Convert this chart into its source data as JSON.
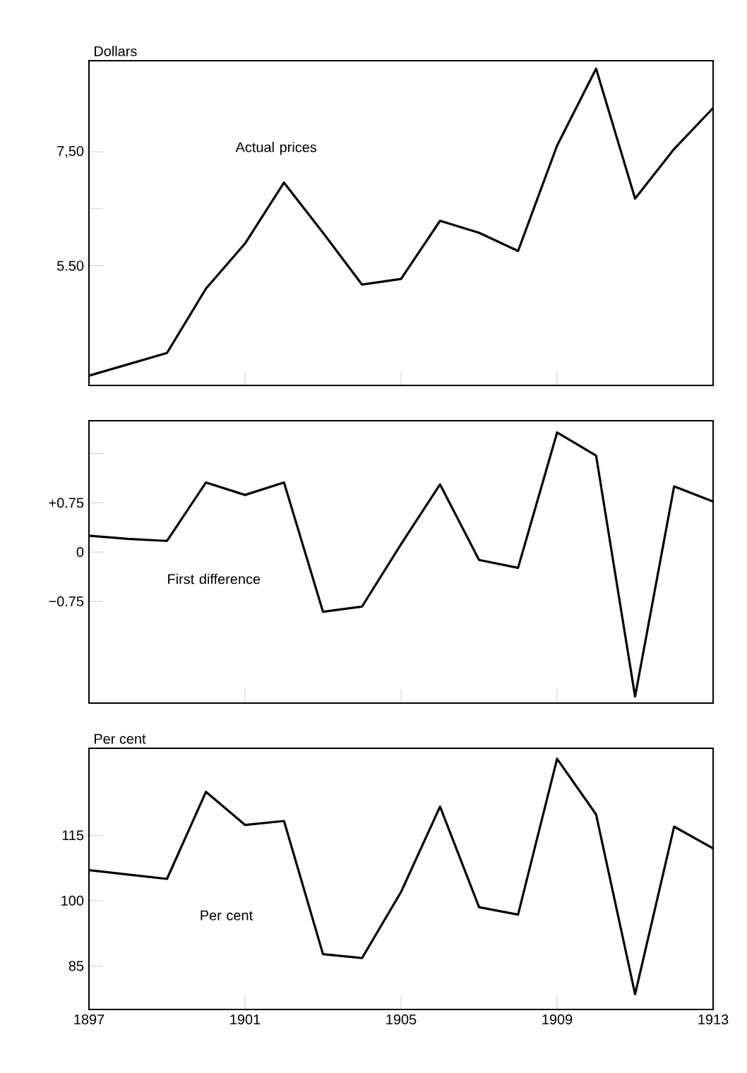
{
  "chart_data": [
    {
      "type": "line",
      "ylabel": "Dollars",
      "annotations": [
        "Actual prices"
      ],
      "x": [
        1897,
        1898,
        1899,
        1900,
        1901,
        1902,
        1903,
        1904,
        1905,
        1906,
        1907,
        1908,
        1909,
        1910,
        1911,
        1912,
        1913
      ],
      "series": [
        {
          "color": "#000000",
          "values": [
            3.57,
            3.77,
            3.97,
            5.1,
            5.89,
            6.96,
            6.08,
            5.17,
            5.27,
            6.29,
            6.08,
            5.76,
            7.61,
            8.96,
            6.68,
            7.55,
            8.27
          ]
        }
      ],
      "xlim": [
        1897,
        1913
      ],
      "xticks": [
        1897,
        1901,
        1905,
        1909,
        1913
      ],
      "ylim": [
        3.4,
        9.1
      ],
      "yticks": [
        {
          "value": 5.5,
          "label": "5.50"
        },
        {
          "value": 6.5,
          "label": null
        },
        {
          "value": 7.5,
          "label": "7,50"
        }
      ],
      "tick_labels": "y",
      "marker": "none",
      "line_style": "solid"
    },
    {
      "type": "line",
      "annotations": [
        "First difference"
      ],
      "x": [
        1897,
        1898,
        1899,
        1900,
        1901,
        1902,
        1903,
        1904,
        1905,
        1906,
        1907,
        1908,
        1909,
        1910,
        1911,
        1912,
        1913
      ],
      "series": [
        {
          "color": "#000000",
          "values": [
            0.25,
            0.2,
            0.17,
            1.06,
            0.87,
            1.06,
            -0.91,
            -0.83,
            0.12,
            1.03,
            -0.12,
            -0.24,
            1.82,
            1.47,
            -2.2,
            1.0,
            0.77
          ]
        }
      ],
      "xlim": [
        1897,
        1913
      ],
      "xticks": [
        1897,
        1901,
        1905,
        1909,
        1913
      ],
      "ylim": [
        -2.3,
        2.0
      ],
      "yticks": [
        {
          "value": -0.75,
          "label": "−0.75"
        },
        0,
        {
          "value": 0.75,
          "label": "+0.75"
        },
        {
          "value": 1.5,
          "label": null
        }
      ],
      "tick_labels": "y",
      "marker": "none",
      "line_style": "solid"
    },
    {
      "type": "line",
      "ylabel": "Per cent",
      "annotations": [
        "Per cent"
      ],
      "x": [
        1897,
        1898,
        1899,
        1900,
        1901,
        1902,
        1903,
        1904,
        1905,
        1906,
        1907,
        1908,
        1909,
        1910,
        1911,
        1912,
        1913
      ],
      "series": [
        {
          "color": "#000000",
          "values": [
            107,
            106,
            105,
            125,
            117.4,
            118.3,
            87.7,
            86.8,
            102,
            121.6,
            98.5,
            96.8,
            132.6,
            119.8,
            78.5,
            117,
            112
          ]
        }
      ],
      "xlim": [
        1897,
        1913
      ],
      "xticks": [
        1897,
        1901,
        1905,
        1909,
        1913
      ],
      "ylim": [
        75,
        135
      ],
      "yticks": [
        85,
        100,
        115
      ],
      "marker": "none",
      "line_style": "solid"
    }
  ]
}
